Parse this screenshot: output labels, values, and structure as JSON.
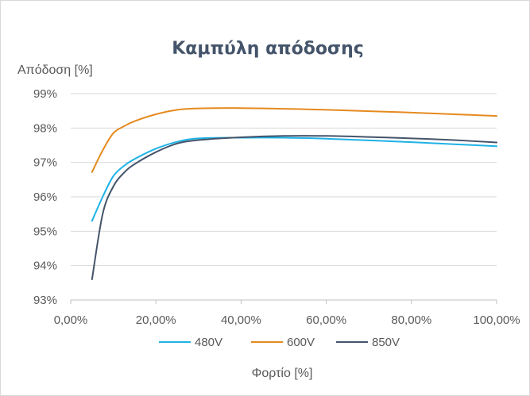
{
  "chart_data": {
    "type": "line",
    "title": "Καμπύλη απόδοσης",
    "ylabel": "Απόδοση [%]",
    "xlabel": "Φορτίο [%]",
    "xlim": [
      0,
      100
    ],
    "ylim": [
      93,
      99
    ],
    "xticks": [
      "0,00%",
      "20,00%",
      "40,00%",
      "60,00%",
      "80,00%",
      "100,00%"
    ],
    "yticks": [
      "93%",
      "94%",
      "95%",
      "96%",
      "97%",
      "98%",
      "99%"
    ],
    "grid": true,
    "legend_position": "bottom",
    "series": [
      {
        "name": "480V",
        "color": "#1fb2e6",
        "x": [
          5,
          7.5,
          10,
          12.5,
          15,
          20,
          25,
          30,
          40,
          50,
          60,
          70,
          80,
          90,
          100
        ],
        "y": [
          95.3,
          96.0,
          96.6,
          96.9,
          97.1,
          97.4,
          97.6,
          97.7,
          97.72,
          97.72,
          97.69,
          97.64,
          97.59,
          97.53,
          97.47
        ]
      },
      {
        "name": "600V",
        "color": "#e58a1f",
        "x": [
          5,
          7.5,
          10,
          12.5,
          15,
          20,
          25,
          30,
          40,
          50,
          60,
          70,
          80,
          90,
          100
        ],
        "y": [
          96.72,
          97.35,
          97.85,
          98.05,
          98.2,
          98.4,
          98.53,
          98.57,
          98.58,
          98.56,
          98.53,
          98.49,
          98.45,
          98.4,
          98.35
        ]
      },
      {
        "name": "850V",
        "color": "#44546a",
        "x": [
          5,
          7.5,
          10,
          12.5,
          15,
          20,
          25,
          30,
          40,
          50,
          60,
          70,
          80,
          90,
          100
        ],
        "y": [
          93.6,
          95.5,
          96.3,
          96.7,
          96.95,
          97.3,
          97.55,
          97.65,
          97.73,
          97.77,
          97.77,
          97.74,
          97.7,
          97.65,
          97.58
        ]
      }
    ]
  }
}
